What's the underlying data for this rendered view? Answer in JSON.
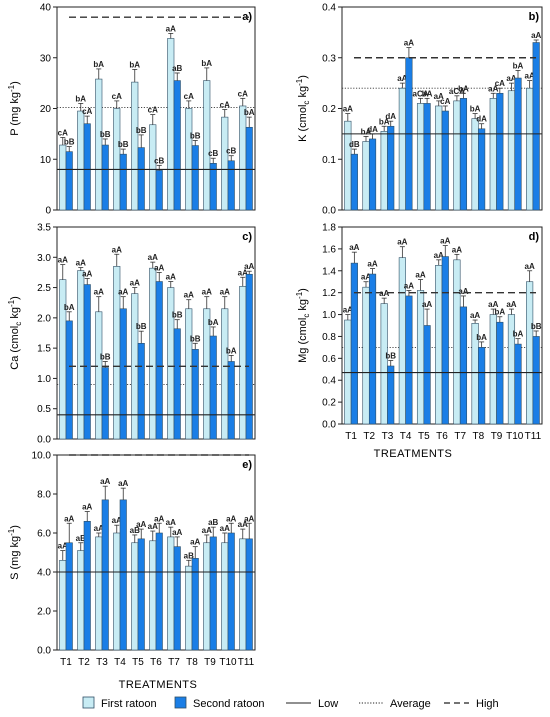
{
  "colors": {
    "first": "#c8ecf4",
    "second": "#1a7ee6",
    "border": "#2f4f66",
    "line": "#222222"
  },
  "legend": {
    "first": "First ratoon",
    "second": "Second ratoon",
    "low": "Low",
    "average": "Average",
    "high": "High"
  },
  "chart_data": [
    {
      "type": "bar",
      "panel": "a)",
      "ylabel_main": "P (mg kg",
      "ylabel_sup": "-1",
      "ylabel_end": ")",
      "ylim": [
        0,
        40
      ],
      "yticks": [
        "0",
        "10",
        "20",
        "30",
        "40"
      ],
      "categories": [
        "T1",
        "T2",
        "T3",
        "T4",
        "T5",
        "T6",
        "T7",
        "T8",
        "T9",
        "T10",
        "T11"
      ],
      "series": [
        {
          "name": "First ratoon",
          "values": [
            12.8,
            19.5,
            25.8,
            20.0,
            25.2,
            16.8,
            33.8,
            20.0,
            25.5,
            18.3,
            20.5
          ],
          "err": [
            1.5,
            1.5,
            2.0,
            1.5,
            2.5,
            2.0,
            1.0,
            1.5,
            2.5,
            1.5,
            1.5
          ],
          "labels": [
            "cA",
            "bA",
            "bA",
            "cA",
            "bA",
            "cA",
            "aA",
            "cA",
            "bA",
            "cA",
            "cA"
          ]
        },
        {
          "name": "Second ratoon",
          "values": [
            11.5,
            17.0,
            12.8,
            11.0,
            12.3,
            7.8,
            25.5,
            12.7,
            9.2,
            9.7,
            16.3
          ],
          "err": [
            1.0,
            1.5,
            1.2,
            1.0,
            2.5,
            1.0,
            1.5,
            1.0,
            1.0,
            1.0,
            2.0
          ],
          "labels": [
            "bB",
            "cA",
            "bB",
            "bB",
            "bB",
            "cB",
            "aB",
            "bB",
            "cB",
            "cB",
            "bA"
          ]
        }
      ],
      "refs": {
        "low": 8,
        "average": 20.2,
        "high": 38
      }
    },
    {
      "type": "bar",
      "panel": "b)",
      "ylabel_main": "K (cmol",
      "ylabel_sub": "c",
      "ylabel_mid": " kg",
      "ylabel_sup": "-1",
      "ylabel_end": ")",
      "ylim": [
        0,
        0.4
      ],
      "yticks": [
        "0.0",
        "0.1",
        "0.2",
        "0.3",
        "0.4"
      ],
      "categories": [
        "T1",
        "T2",
        "T3",
        "T4",
        "T5",
        "T6",
        "T7",
        "T8",
        "T9",
        "T10",
        "T11"
      ],
      "series": [
        {
          "name": "First ratoon",
          "values": [
            0.175,
            0.135,
            0.155,
            0.24,
            0.21,
            0.205,
            0.215,
            0.18,
            0.22,
            0.235,
            0.24
          ],
          "err": [
            0.015,
            0.01,
            0.01,
            0.01,
            0.01,
            0.01,
            0.01,
            0.01,
            0.01,
            0.015,
            0.015
          ],
          "labels": [
            "aA",
            "bA",
            "bA",
            "aA",
            "aCA",
            "aA",
            "aCA",
            "bA",
            "aA",
            "aA",
            "aA"
          ]
        },
        {
          "name": "Second ratoon",
          "values": [
            0.11,
            0.14,
            0.165,
            0.3,
            0.21,
            0.195,
            0.22,
            0.16,
            0.23,
            0.26,
            0.33
          ],
          "err": [
            0.01,
            0.01,
            0.01,
            0.02,
            0.01,
            0.01,
            0.01,
            0.01,
            0.01,
            0.015,
            0.005
          ],
          "labels": [
            "dB",
            "dA",
            "dA",
            "aA",
            "bA",
            "cA",
            "bA",
            "dA",
            "cA",
            "bA",
            "aA"
          ]
        }
      ],
      "refs": {
        "low": 0.15,
        "average": 0.24,
        "high": 0.3
      }
    },
    {
      "type": "bar",
      "panel": "c)",
      "ylabel_main": "Ca (cmol",
      "ylabel_sub": "c",
      "ylabel_mid": " kg",
      "ylabel_sup": "-1",
      "ylabel_end": ")",
      "ylim": [
        0,
        3.5
      ],
      "yticks": [
        "0.0",
        "0.5",
        "1.0",
        "1.5",
        "2.0",
        "2.5",
        "3.0",
        "3.5"
      ],
      "categories": [
        "T1",
        "T2",
        "T3",
        "T4",
        "T5",
        "T6",
        "T7",
        "T8",
        "T9",
        "T10",
        "T11"
      ],
      "series": [
        {
          "name": "First ratoon",
          "values": [
            2.63,
            2.78,
            2.1,
            2.85,
            2.4,
            2.82,
            2.5,
            2.15,
            2.15,
            2.15,
            2.52
          ],
          "err": [
            0.25,
            0.05,
            0.25,
            0.2,
            0.1,
            0.1,
            0.1,
            0.15,
            0.2,
            0.2,
            0.15
          ],
          "labels": [
            "aA",
            "aA",
            "aA",
            "aA",
            "aA",
            "aA",
            "aA",
            "aA",
            "aA",
            "aA",
            "aA"
          ]
        },
        {
          "name": "Second ratoon",
          "values": [
            1.95,
            2.55,
            1.18,
            2.15,
            1.58,
            2.6,
            1.82,
            1.48,
            1.7,
            1.28,
            2.72
          ],
          "err": [
            0.15,
            0.1,
            0.1,
            0.2,
            0.2,
            0.15,
            0.15,
            0.1,
            0.15,
            0.1,
            0.05
          ],
          "labels": [
            "bA",
            "aA",
            "bB",
            "aA",
            "bB",
            "aA",
            "bB",
            "bB",
            "bA",
            "bA",
            "aA"
          ]
        }
      ],
      "refs": {
        "low": 0.4,
        "average": 0.9,
        "high": 1.2
      }
    },
    {
      "type": "bar",
      "panel": "d)",
      "ylabel_main": "Mg (cmol",
      "ylabel_sub": "c",
      "ylabel_mid": " kg",
      "ylabel_sup": "-1",
      "ylabel_end": ")",
      "ylim": [
        0,
        1.8
      ],
      "yticks": [
        "0.0",
        "0.2",
        "0.4",
        "0.6",
        "0.8",
        "1.0",
        "1.2",
        "1.4",
        "1.6",
        "1.8"
      ],
      "categories": [
        "T1",
        "T2",
        "T3",
        "T4",
        "T5",
        "T6",
        "T7",
        "T8",
        "T9",
        "T10",
        "T11"
      ],
      "series": [
        {
          "name": "First ratoon",
          "values": [
            0.95,
            1.25,
            1.1,
            1.52,
            1.22,
            1.45,
            1.5,
            0.92,
            1.0,
            1.0,
            1.3
          ],
          "err": [
            0.05,
            0.05,
            0.05,
            0.1,
            0.1,
            0.05,
            0.05,
            0.03,
            0.05,
            0.05,
            0.1
          ],
          "labels": [
            "aA",
            "aA",
            "aA",
            "aA",
            "aA",
            "aA",
            "aA",
            "aA",
            "aA",
            "aA",
            "aA"
          ]
        },
        {
          "name": "Second ratoon",
          "values": [
            1.47,
            1.37,
            0.53,
            1.17,
            0.9,
            1.53,
            1.07,
            0.7,
            0.93,
            0.73,
            0.8
          ],
          "err": [
            0.1,
            0.05,
            0.05,
            0.05,
            0.15,
            0.1,
            0.1,
            0.05,
            0.05,
            0.05,
            0.05
          ],
          "labels": [
            "aA",
            "aA",
            "bB",
            "aA",
            "aA",
            "aA",
            "aA",
            "bA",
            "bA",
            "bA",
            "bB"
          ]
        }
      ],
      "refs": {
        "low": 0.47,
        "average": 0.7,
        "high": 1.2
      }
    },
    {
      "type": "bar",
      "panel": "e)",
      "ylabel_main": "S (mg kg",
      "ylabel_sup": "-1",
      "ylabel_end": ")",
      "ylim": [
        0,
        10
      ],
      "yticks": [
        "0.0",
        "2.0",
        "4.0",
        "6.0",
        "8.0",
        "10.0"
      ],
      "categories": [
        "T1",
        "T2",
        "T3",
        "T4",
        "T5",
        "T6",
        "T7",
        "T8",
        "T9",
        "T10",
        "T11"
      ],
      "series": [
        {
          "name": "First ratoon",
          "values": [
            4.6,
            5.1,
            5.8,
            6.0,
            5.5,
            5.6,
            5.8,
            4.3,
            5.5,
            5.5,
            5.7
          ],
          "err": [
            0.5,
            0.4,
            0.2,
            0.4,
            0.4,
            0.5,
            0.5,
            0.3,
            0.4,
            0.5,
            0.5
          ],
          "labels": [
            "aA",
            "aB",
            "aA",
            "aA",
            "aB",
            "aA",
            "aA",
            "aB",
            "aA",
            "aA",
            "aA"
          ]
        },
        {
          "name": "Second ratoon",
          "values": [
            5.5,
            6.6,
            7.7,
            7.7,
            5.7,
            6.0,
            5.3,
            4.7,
            5.8,
            6.0,
            5.7
          ],
          "err": [
            1.0,
            0.5,
            0.7,
            0.6,
            0.5,
            0.5,
            0.5,
            0.6,
            0.5,
            0.5,
            0.8
          ],
          "labels": [
            "aA",
            "aA",
            "aA",
            "aA",
            "aA",
            "aA",
            "aA",
            "aA",
            "aB",
            "aA",
            "aA"
          ]
        }
      ],
      "refs": {
        "low": 4.0,
        "high": 10.0
      }
    }
  ],
  "xlabel": "TREATMENTS"
}
